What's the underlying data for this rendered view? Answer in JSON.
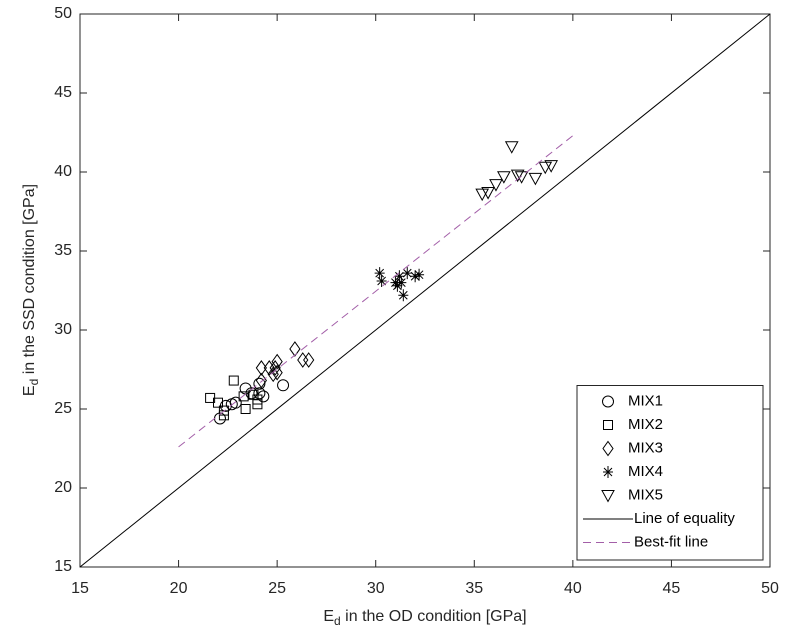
{
  "chart_data": {
    "type": "scatter",
    "x_label": {
      "symbol": "E",
      "subscript": "d",
      "text": " in the OD condition [GPa]"
    },
    "y_label": {
      "symbol": "E",
      "subscript": "d",
      "text": " in the SSD condition [GPa]"
    },
    "xlim": [
      15,
      50
    ],
    "ylim": [
      15,
      50
    ],
    "xticks": [
      15,
      20,
      25,
      30,
      35,
      40,
      45,
      50
    ],
    "yticks": [
      15,
      20,
      25,
      30,
      35,
      40,
      45,
      50
    ],
    "legend": "lower right",
    "series": [
      {
        "name": "MIX1",
        "marker": "circle",
        "color": "#000000",
        "x": [
          22.1,
          22.4,
          22.7,
          23.4,
          23.7,
          24.1,
          24.1,
          24.3,
          25.3,
          22.9
        ],
        "y": [
          24.4,
          25.2,
          25.3,
          26.3,
          26.0,
          26.0,
          26.6,
          25.8,
          26.5,
          25.4
        ]
      },
      {
        "name": "MIX2",
        "marker": "square",
        "color": "#000000",
        "x": [
          21.6,
          22.0,
          22.8,
          22.3,
          22.3,
          23.4,
          23.3,
          24.0,
          24.0,
          23.8
        ],
        "y": [
          25.7,
          25.4,
          26.8,
          24.9,
          24.6,
          25.0,
          25.8,
          25.3,
          25.6,
          25.9
        ]
      },
      {
        "name": "MIX3",
        "marker": "diamond",
        "color": "#000000",
        "x": [
          24.2,
          24.2,
          24.8,
          24.9,
          25.0,
          25.9,
          26.3,
          26.6,
          24.6,
          25.0
        ],
        "y": [
          27.6,
          26.8,
          27.2,
          27.6,
          28.0,
          28.8,
          28.1,
          28.1,
          27.6,
          27.3
        ]
      },
      {
        "name": "MIX4",
        "marker": "asterisk",
        "color": "#000000",
        "x": [
          30.2,
          30.3,
          31.0,
          31.1,
          31.2,
          31.3,
          31.4,
          31.6,
          32.0,
          32.2
        ],
        "y": [
          33.6,
          33.1,
          33.0,
          32.8,
          33.4,
          33.0,
          32.2,
          33.6,
          33.4,
          33.5
        ]
      },
      {
        "name": "MIX5",
        "marker": "triangle-down",
        "color": "#000000",
        "x": [
          35.4,
          35.7,
          36.1,
          36.5,
          36.9,
          37.2,
          37.4,
          38.1,
          38.6,
          38.9
        ],
        "y": [
          38.6,
          38.7,
          39.2,
          39.7,
          41.6,
          39.8,
          39.7,
          39.6,
          40.3,
          40.4
        ]
      },
      {
        "name": "Line of equality",
        "marker": "line",
        "dash": false,
        "color": "#000000",
        "x": [
          15,
          50
        ],
        "y": [
          15,
          50
        ]
      },
      {
        "name": "Best-fit line",
        "marker": "line",
        "dash": true,
        "color": "#a35fa8",
        "x": [
          20,
          40
        ],
        "y": [
          22.6,
          42.3
        ]
      }
    ]
  }
}
